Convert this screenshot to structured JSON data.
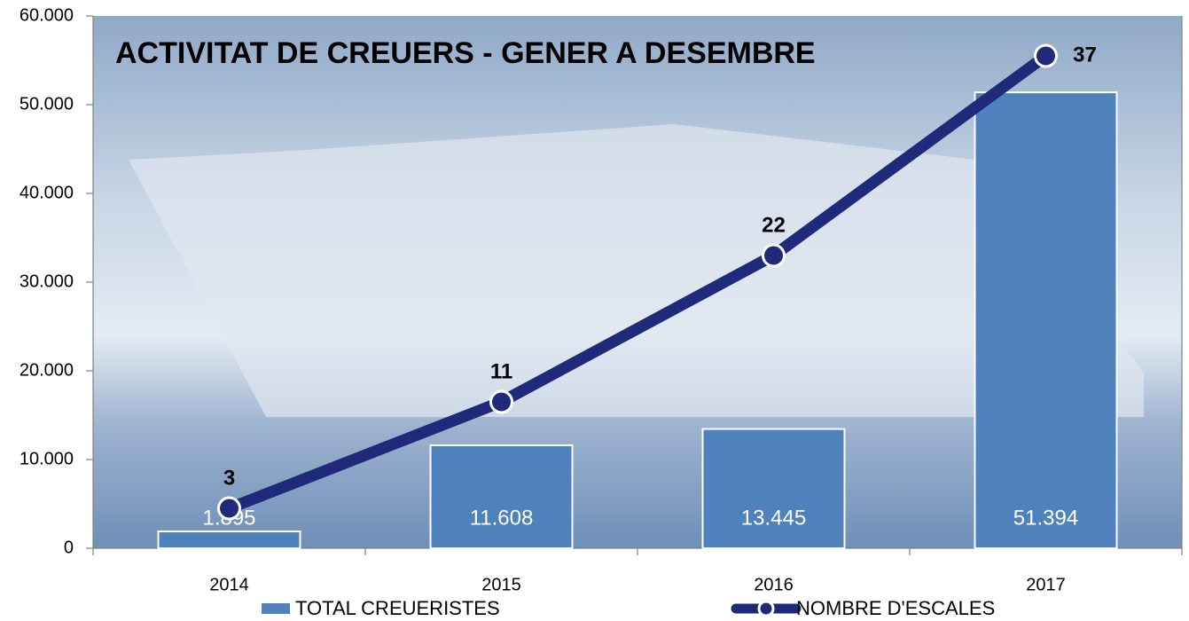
{
  "chart_data": {
    "type": "bar",
    "title": "ACTIVITAT DE CREUERS - GENER A DESEMBRE",
    "categories": [
      "2014",
      "2015",
      "2016",
      "2017"
    ],
    "series": [
      {
        "name": "TOTAL CREUERISTES",
        "type": "bar",
        "color": "#4f81bd",
        "values": [
          1895,
          11608,
          13445,
          51394
        ],
        "value_labels": [
          "1.895",
          "11.608",
          "13.445",
          "51.394"
        ]
      },
      {
        "name": "NOMBRE D'ESCALES",
        "type": "line",
        "axis": "y2",
        "color": "#1f2a7a",
        "values": [
          3,
          11,
          22,
          37
        ]
      }
    ],
    "ylim": [
      0,
      60000
    ],
    "yticks": [
      0,
      {
        "value": 10000,
        "label": "10.000"
      },
      {
        "value": 20000,
        "label": "20.000"
      },
      {
        "value": 30000,
        "label": "30.000"
      },
      {
        "value": 40000,
        "label": "40.000"
      },
      {
        "value": 50000,
        "label": "50.000"
      },
      {
        "value": 60000,
        "label": "60.000"
      }
    ],
    "y2lim": [
      0,
      40
    ]
  }
}
